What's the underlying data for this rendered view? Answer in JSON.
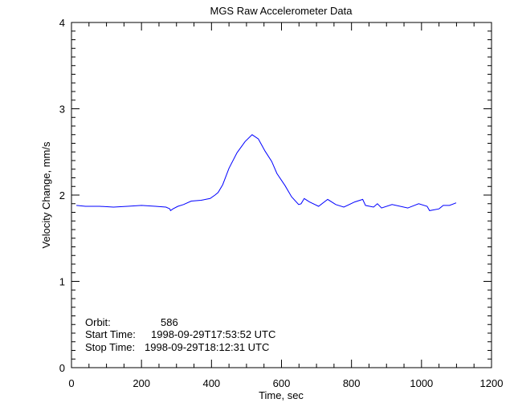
{
  "chart_data": {
    "type": "line",
    "title": "MGS Raw Accelerometer Data",
    "xlabel": "Time, sec",
    "ylabel": "Velocity Change, mm/s",
    "xlim": [
      0,
      1200
    ],
    "ylim": [
      0,
      4
    ],
    "x_ticks": [
      "0",
      "200",
      "400",
      "600",
      "800",
      "1000",
      "1200"
    ],
    "y_ticks": [
      "0",
      "1",
      "2",
      "3",
      "4"
    ],
    "grid": false,
    "series": [
      {
        "name": "velocity change",
        "color": "#0000ff",
        "x": [
          14,
          40,
          80,
          120,
          160,
          200,
          240,
          270,
          281,
          283,
          290,
          304,
          320,
          342,
          370,
          396,
          410,
          419,
          432,
          450,
          473,
          496,
          516,
          534,
          553,
          572,
          587,
          610,
          629,
          649,
          656,
          665,
          680,
          706,
          732,
          755,
          778,
          809,
          832,
          840,
          863,
          874,
          886,
          916,
          961,
          992,
          1016,
          1023,
          1050,
          1062,
          1080,
          1099
        ],
        "y": [
          1.88,
          1.87,
          1.87,
          1.86,
          1.87,
          1.88,
          1.87,
          1.86,
          1.84,
          1.82,
          1.84,
          1.87,
          1.89,
          1.93,
          1.94,
          1.96,
          2.0,
          2.03,
          2.12,
          2.31,
          2.49,
          2.62,
          2.7,
          2.65,
          2.51,
          2.39,
          2.25,
          2.11,
          1.98,
          1.89,
          1.9,
          1.96,
          1.92,
          1.87,
          1.95,
          1.89,
          1.86,
          1.92,
          1.95,
          1.88,
          1.86,
          1.9,
          1.85,
          1.89,
          1.85,
          1.9,
          1.87,
          1.82,
          1.84,
          1.88,
          1.88,
          1.91
        ]
      }
    ],
    "annotations": [
      {
        "label": "Orbit:",
        "value": "586"
      },
      {
        "label": "Start Time:",
        "value": "1998-09-29T17:53:52 UTC"
      },
      {
        "label": "Stop Time:",
        "value": "1998-09-29T18:12:31 UTC"
      }
    ]
  }
}
